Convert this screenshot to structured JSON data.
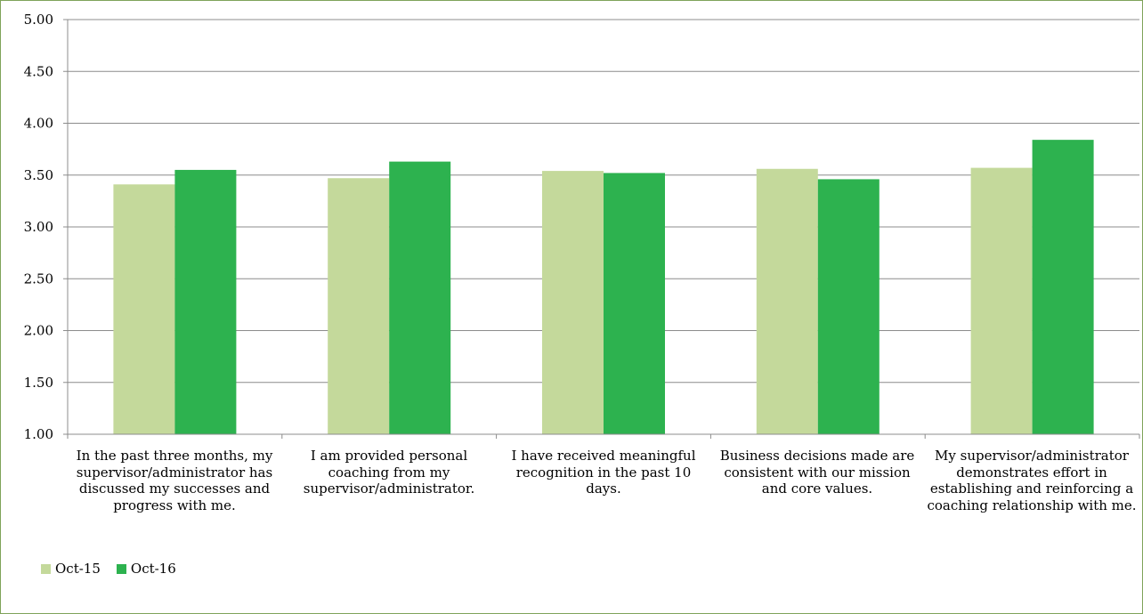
{
  "chart_data": {
    "type": "bar",
    "title": "",
    "xlabel": "",
    "ylabel": "",
    "ylim": [
      1.0,
      5.0
    ],
    "yticks": [
      "1.00",
      "1.50",
      "2.00",
      "2.50",
      "3.00",
      "3.50",
      "4.00",
      "4.50",
      "5.00"
    ],
    "grid": true,
    "legend_position": "bottom-left",
    "categories": [
      "In the past three months, my supervisor/administrator has discussed my successes and progress with me.",
      "I am provided personal coaching from my supervisor/administrator.",
      "I have received meaningful recognition in the past 10 days.",
      "Business decisions made are consistent with our mission and core values.",
      "My supervisor/administrator demonstrates effort in establishing and reinforcing a coaching relationship with me."
    ],
    "series": [
      {
        "name": "Oct-15",
        "color": "#c4d99b",
        "values": [
          3.41,
          3.47,
          3.54,
          3.56,
          3.57
        ]
      },
      {
        "name": "Oct-16",
        "color": "#2db24f",
        "values": [
          3.55,
          3.63,
          3.52,
          3.46,
          3.84
        ]
      }
    ]
  }
}
